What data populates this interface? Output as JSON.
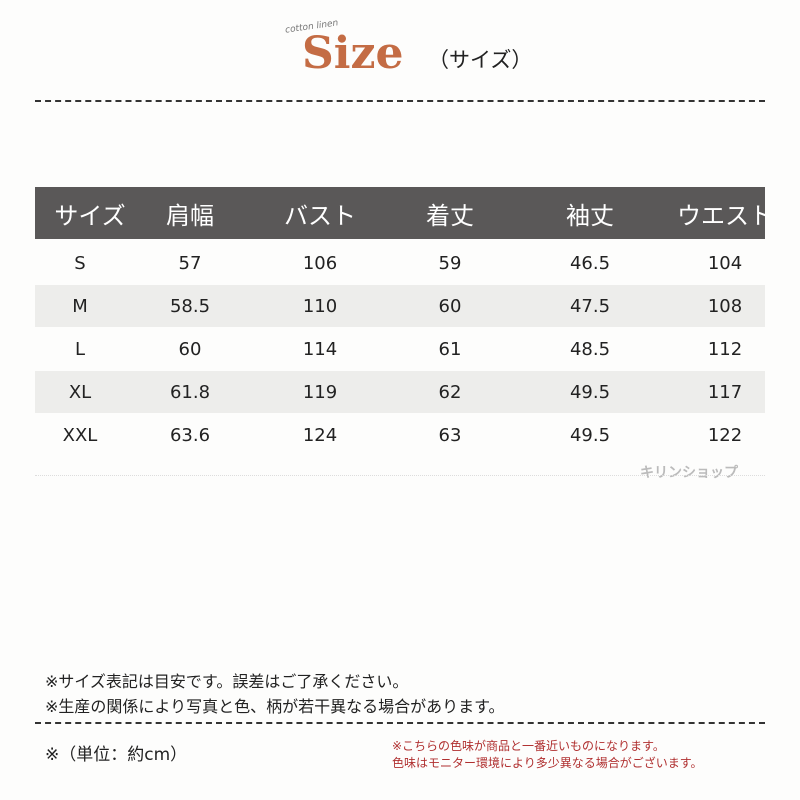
{
  "header": {
    "tag": "cotton linen",
    "title": "Size",
    "subtitle": "（サイズ）"
  },
  "table": {
    "columns": [
      "サイズ",
      "肩幅",
      "バスト",
      "着丈",
      "袖丈",
      "ウエスト"
    ],
    "rows": [
      [
        "S",
        "57",
        "106",
        "59",
        "46.5",
        "104"
      ],
      [
        "M",
        "58.5",
        "110",
        "60",
        "47.5",
        "108"
      ],
      [
        "L",
        "60",
        "114",
        "61",
        "48.5",
        "112"
      ],
      [
        "XL",
        "61.8",
        "119",
        "62",
        "49.5",
        "117"
      ],
      [
        "XXL",
        "63.6",
        "124",
        "63",
        "49.5",
        "122"
      ]
    ]
  },
  "watermark": "キリンショップ",
  "notes": [
    "※サイズ表記は目安です。誤差はご了承ください。",
    "※生産の関係により写真と色、柄が若干異なる場合があります。"
  ],
  "unit": "※（単位：約cm）",
  "color_notes": [
    "※こちらの色味が商品と一番近いものになります。",
    "色味はモニター環境により多少異なる場合がございます。"
  ],
  "colors": {
    "title": "#c46c44",
    "header_bg": "#5a5858",
    "note_red": "#b03030"
  }
}
